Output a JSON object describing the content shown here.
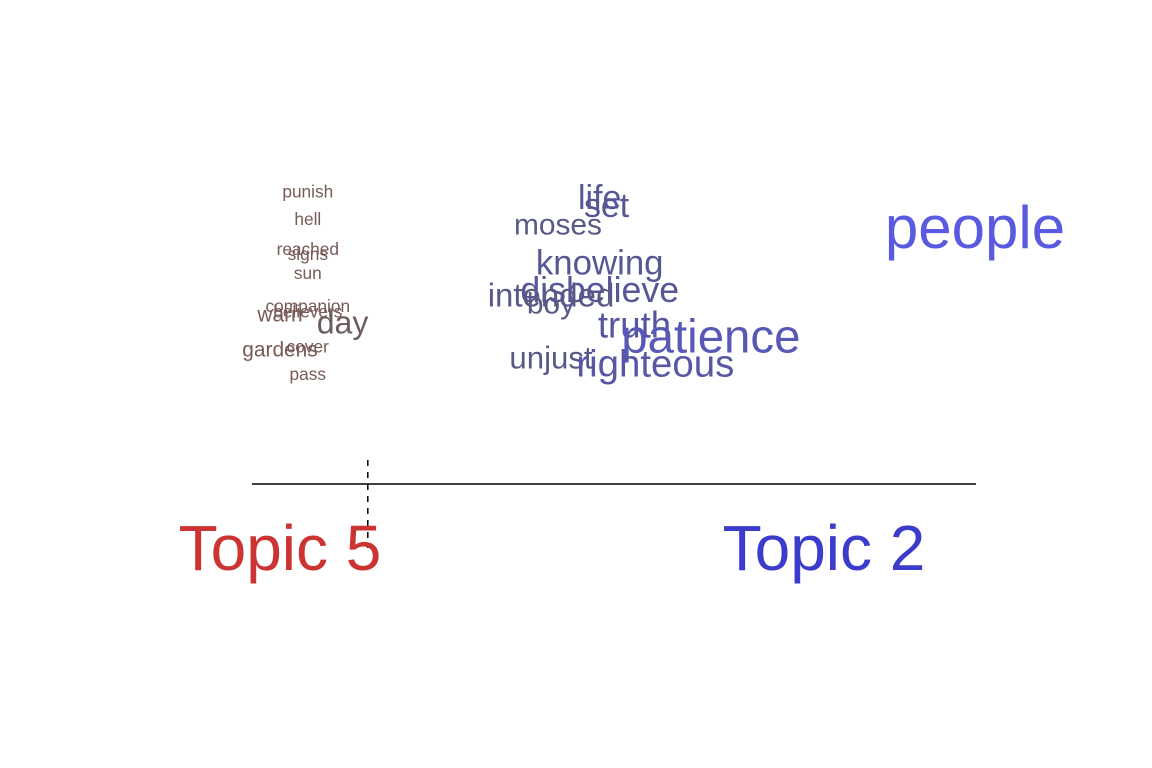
{
  "chart_data": {
    "type": "scatter",
    "description_free": true,
    "x_axis": {
      "left_label": "Topic 5",
      "right_label": "Topic 2",
      "left_color": "#cc3333",
      "right_color": "#3b3bcc",
      "xlim": [
        0,
        1
      ],
      "marker_x": 0.16
    },
    "words": [
      {
        "text": "punish",
        "x": 0.04,
        "y": 0.95,
        "size": 0.05
      },
      {
        "text": "hell",
        "x": 0.04,
        "y": 0.85,
        "size": 0.05
      },
      {
        "text": "reached",
        "x": 0.04,
        "y": 0.74,
        "size": 0.05
      },
      {
        "text": "signs",
        "x": 0.04,
        "y": 0.72,
        "size": 0.05
      },
      {
        "text": "sun",
        "x": 0.04,
        "y": 0.65,
        "size": 0.05
      },
      {
        "text": "companion",
        "x": 0.04,
        "y": 0.53,
        "size": 0.05
      },
      {
        "text": "believers",
        "x": 0.04,
        "y": 0.51,
        "size": 0.05
      },
      {
        "text": "warn",
        "x": 0.0,
        "y": 0.5,
        "size": 0.13
      },
      {
        "text": "day",
        "x": 0.09,
        "y": 0.47,
        "size": 0.38
      },
      {
        "text": "cover",
        "x": 0.04,
        "y": 0.38,
        "size": 0.05
      },
      {
        "text": "gardens",
        "x": 0.0,
        "y": 0.37,
        "size": 0.13
      },
      {
        "text": "pass",
        "x": 0.04,
        "y": 0.28,
        "size": 0.05
      },
      {
        "text": "life",
        "x": 0.46,
        "y": 0.93,
        "size": 0.42
      },
      {
        "text": "set",
        "x": 0.47,
        "y": 0.9,
        "size": 0.42
      },
      {
        "text": "moses",
        "x": 0.4,
        "y": 0.83,
        "size": 0.33
      },
      {
        "text": "knowing",
        "x": 0.46,
        "y": 0.69,
        "size": 0.44
      },
      {
        "text": "disbelieve",
        "x": 0.46,
        "y": 0.59,
        "size": 0.46
      },
      {
        "text": "intended",
        "x": 0.39,
        "y": 0.57,
        "size": 0.4
      },
      {
        "text": "boy",
        "x": 0.39,
        "y": 0.54,
        "size": 0.33
      },
      {
        "text": "truth",
        "x": 0.51,
        "y": 0.46,
        "size": 0.48
      },
      {
        "text": "patience",
        "x": 0.62,
        "y": 0.42,
        "size": 0.72
      },
      {
        "text": "unjust",
        "x": 0.39,
        "y": 0.34,
        "size": 0.36
      },
      {
        "text": "righteous",
        "x": 0.54,
        "y": 0.32,
        "size": 0.52
      },
      {
        "text": "people",
        "x": 1.0,
        "y": 0.82,
        "size": 1.0
      }
    ]
  }
}
